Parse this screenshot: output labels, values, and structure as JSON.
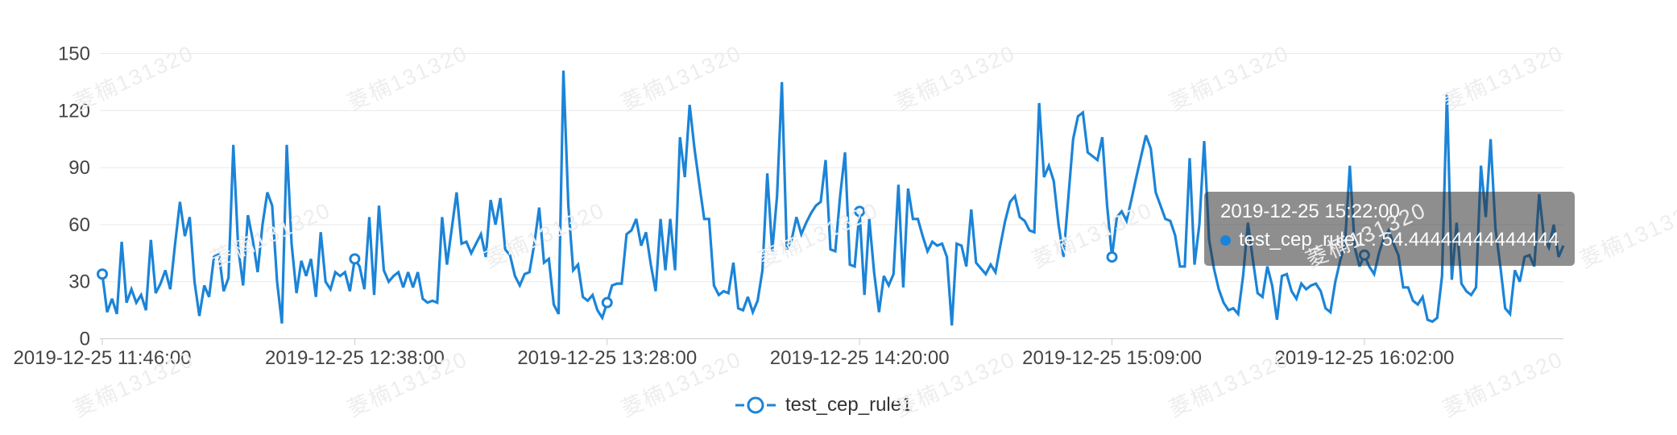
{
  "watermark": {
    "text": "菱楠131320",
    "color": "#ededef"
  },
  "legend": {
    "label": "test_cep_rule1"
  },
  "tooltip": {
    "title": "2019-12-25 15:22:00",
    "series_label": "test_cep_rule1",
    "separator": " : ",
    "value": "54.44444444444444"
  },
  "colors": {
    "series_blue": "#1b84d8",
    "grid_line": "#e9e9e9",
    "axis_line": "#cccccc",
    "axis_label": "#444444",
    "tooltip_bg": "rgba(50,50,50,0.55)"
  },
  "chart_data": {
    "type": "line",
    "title": "",
    "xlabel": "",
    "ylabel": "",
    "ylim": [
      0,
      150
    ],
    "y_ticks": [
      0,
      30,
      60,
      90,
      120,
      150
    ],
    "grid": true,
    "legend_position": "bottom",
    "x_tick_labels": [
      "2019-12-25 11:46:00",
      "2019-12-25 12:38:00",
      "2019-12-25 13:28:00",
      "2019-12-25 14:20:00",
      "2019-12-25 15:09:00",
      "2019-12-25 16:02:00"
    ],
    "x_tick_indices": [
      0,
      52,
      104,
      156,
      208,
      260
    ],
    "marker_indices": [
      0,
      52,
      104,
      156,
      208,
      260
    ],
    "hover_index": 221,
    "hover_time": "2019-12-25 15:22:00",
    "series": [
      {
        "name": "test_cep_rule1",
        "color": "#1b84d8",
        "values": [
          34,
          14,
          21,
          13,
          51,
          19,
          26,
          19,
          23,
          15,
          52,
          24,
          29,
          36,
          26,
          50,
          72,
          54,
          64,
          30,
          12,
          28,
          22,
          43,
          45,
          25,
          32,
          102,
          48,
          28,
          65,
          52,
          35,
          60,
          77,
          70,
          30,
          8,
          102,
          50,
          24,
          41,
          33,
          42,
          22,
          56,
          30,
          26,
          35,
          33,
          35,
          25,
          42,
          38,
          26,
          64,
          23,
          70,
          36,
          30,
          33,
          35,
          27,
          35,
          27,
          35,
          21,
          19,
          20,
          19,
          64,
          39,
          58,
          77,
          50,
          51,
          45,
          50,
          55,
          43,
          73,
          60,
          74,
          47,
          44,
          33,
          28,
          34,
          35,
          50,
          69,
          40,
          42,
          18,
          13,
          141,
          70,
          36,
          39,
          22,
          20,
          23,
          15,
          11,
          19,
          28,
          29,
          29,
          55,
          57,
          63,
          49,
          56,
          39,
          25,
          63,
          36,
          63,
          36,
          106,
          85,
          123,
          100,
          81,
          63,
          63,
          28,
          23,
          25,
          24,
          40,
          16,
          15,
          22,
          14,
          20,
          36,
          87,
          46,
          75,
          135,
          47,
          52,
          64,
          55,
          61,
          66,
          70,
          72,
          94,
          47,
          46,
          75,
          98,
          39,
          38,
          67,
          23,
          63,
          35,
          14,
          33,
          28,
          34,
          81,
          27,
          79,
          63,
          63,
          54,
          46,
          51,
          49,
          50,
          43,
          7,
          50,
          49,
          38,
          68,
          40,
          37,
          34,
          39,
          35,
          49,
          62,
          72,
          75,
          64,
          62,
          57,
          56,
          124,
          85,
          91,
          83,
          60,
          43,
          74,
          105,
          117,
          119,
          98,
          96,
          94,
          106,
          70,
          43,
          64,
          67,
          62,
          73,
          85,
          96,
          107,
          100,
          77,
          70,
          63,
          62,
          54.44444444444444,
          38,
          38,
          95,
          39,
          60,
          104,
          52,
          37,
          26,
          19,
          15,
          16,
          13,
          33,
          61,
          42,
          24,
          22,
          38,
          28,
          10,
          33,
          34,
          25,
          21,
          29,
          26,
          28,
          29,
          25,
          16,
          14,
          30,
          41,
          50,
          91,
          48,
          38,
          44,
          38,
          34,
          45,
          53,
          57,
          50,
          44,
          27,
          27,
          20,
          18,
          22,
          10,
          9,
          11,
          33,
          129,
          31,
          61,
          29,
          25,
          23,
          27,
          91,
          64,
          105,
          58,
          38,
          16,
          13,
          36,
          30,
          43,
          44,
          38,
          76,
          53,
          48,
          60,
          43,
          49
        ]
      }
    ]
  }
}
